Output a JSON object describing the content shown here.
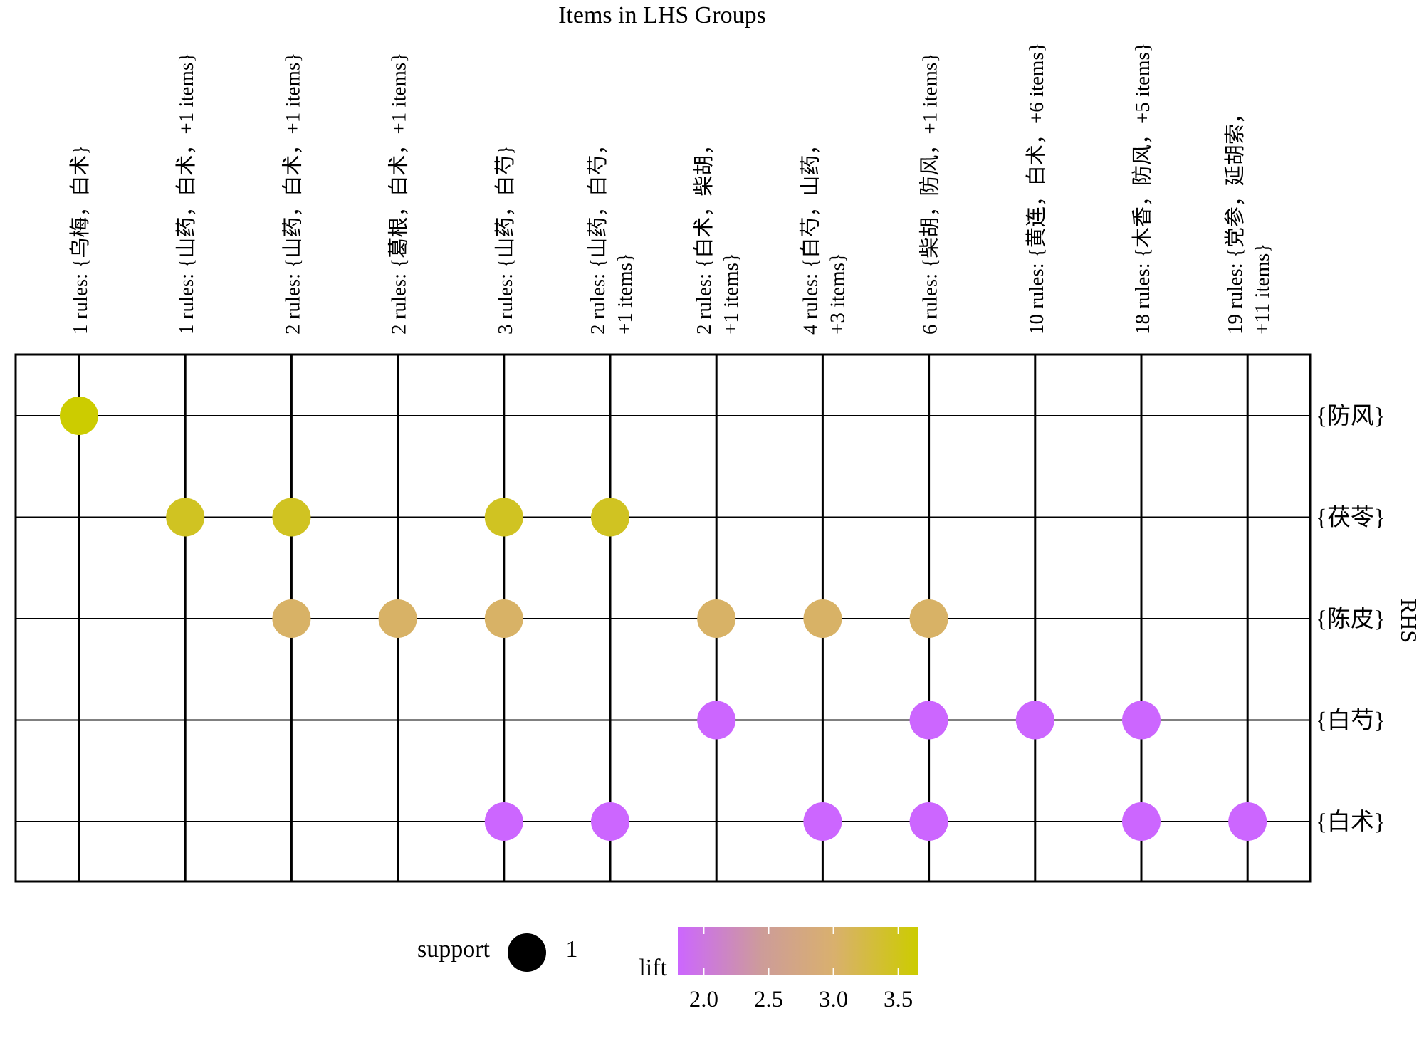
{
  "chart_data": {
    "type": "grouped-matrix",
    "title": "Items in LHS Groups",
    "ylabel": "RHS",
    "columns": [
      {
        "lines": [
          "1  rules: {乌梅，白术}"
        ]
      },
      {
        "lines": [
          "1  rules: {山药，白术，+1 items}"
        ]
      },
      {
        "lines": [
          "2  rules: {山药，白术，+1 items}"
        ]
      },
      {
        "lines": [
          "2  rules: {葛根，白术，+1 items}"
        ]
      },
      {
        "lines": [
          "3  rules: {山药，白芍}"
        ]
      },
      {
        "lines": [
          "2  rules: {山药，白芍，",
          "+1 items}"
        ]
      },
      {
        "lines": [
          "2  rules: {白术，柴胡，",
          "+1 items}"
        ]
      },
      {
        "lines": [
          "4  rules: {白芍，山药，",
          "+3 items}"
        ]
      },
      {
        "lines": [
          "6  rules: {柴胡，防风，+1 items}"
        ]
      },
      {
        "lines": [
          "10  rules: {黄连，白术，+6 items}"
        ]
      },
      {
        "lines": [
          "18  rules: {木香，防风，+5 items}"
        ]
      },
      {
        "lines": [
          "19  rules: {党参，延胡索，",
          "+11 items}"
        ]
      }
    ],
    "rows": [
      "{防风}",
      "{茯苓}",
      "{陈皮}",
      "{白芍}",
      "{白术}"
    ],
    "points": [
      {
        "col": 0,
        "row": 0,
        "lift": 3.65
      },
      {
        "col": 1,
        "row": 1,
        "lift": 3.45
      },
      {
        "col": 2,
        "row": 1,
        "lift": 3.45
      },
      {
        "col": 4,
        "row": 1,
        "lift": 3.45
      },
      {
        "col": 5,
        "row": 1,
        "lift": 3.45
      },
      {
        "col": 2,
        "row": 2,
        "lift": 3.05
      },
      {
        "col": 3,
        "row": 2,
        "lift": 3.05
      },
      {
        "col": 4,
        "row": 2,
        "lift": 3.05
      },
      {
        "col": 6,
        "row": 2,
        "lift": 3.05
      },
      {
        "col": 7,
        "row": 2,
        "lift": 3.05
      },
      {
        "col": 8,
        "row": 2,
        "lift": 3.05
      },
      {
        "col": 6,
        "row": 3,
        "lift": 1.8
      },
      {
        "col": 8,
        "row": 3,
        "lift": 1.8
      },
      {
        "col": 9,
        "row": 3,
        "lift": 1.8
      },
      {
        "col": 10,
        "row": 3,
        "lift": 1.8
      },
      {
        "col": 4,
        "row": 4,
        "lift": 1.8
      },
      {
        "col": 5,
        "row": 4,
        "lift": 1.8
      },
      {
        "col": 7,
        "row": 4,
        "lift": 1.8
      },
      {
        "col": 8,
        "row": 4,
        "lift": 1.8
      },
      {
        "col": 10,
        "row": 4,
        "lift": 1.8
      },
      {
        "col": 11,
        "row": 4,
        "lift": 1.8
      }
    ],
    "legend": {
      "support_label": "support",
      "support_value": "1",
      "lift_label": "lift",
      "lift_ticks": [
        "2.0",
        "2.5",
        "3.0",
        "3.5"
      ],
      "lift_range": [
        1.8,
        3.65
      ],
      "colors": [
        "#cc66ff",
        "#cd9c99",
        "#d9b06e",
        "#cccc00"
      ]
    }
  }
}
